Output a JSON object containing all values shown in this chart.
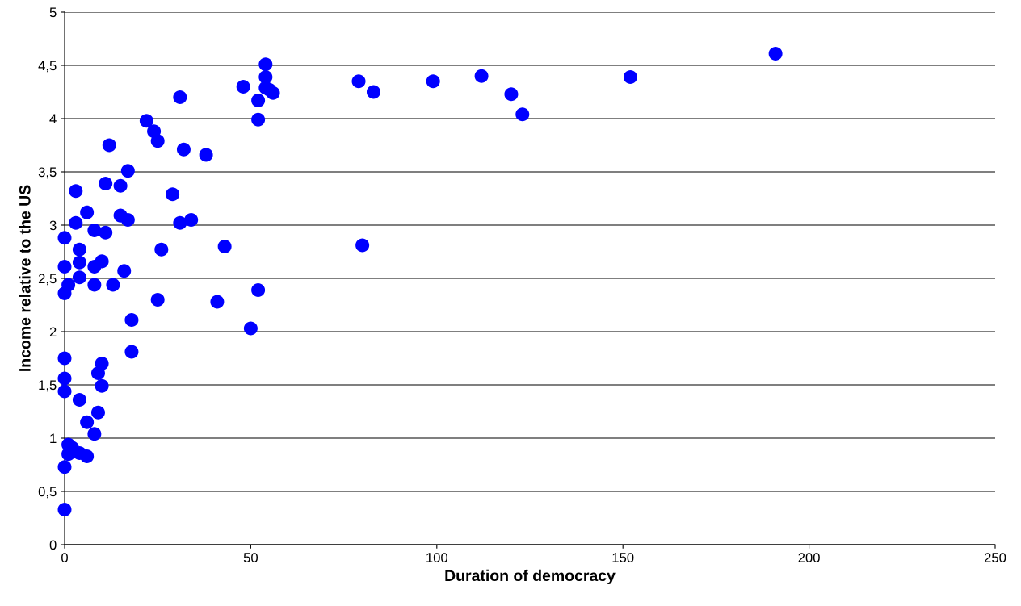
{
  "chart_data": {
    "type": "scatter",
    "xlabel": "Duration of democracy",
    "ylabel": "Income relative to the US",
    "x": [
      0,
      0,
      1,
      1,
      2,
      4,
      6,
      8,
      6,
      9,
      4,
      0,
      0,
      0,
      10,
      9,
      10,
      18,
      18,
      0,
      1,
      0,
      0,
      4,
      4,
      4,
      3,
      3,
      6,
      8,
      8,
      8,
      10,
      11,
      11,
      12,
      13,
      15,
      15,
      16,
      17,
      17,
      22,
      24,
      25,
      25,
      26,
      29,
      31,
      31,
      32,
      34,
      38,
      41,
      43,
      48,
      50,
      52,
      52,
      52,
      54,
      54,
      54,
      55,
      56,
      79,
      80,
      83,
      99,
      112,
      120,
      123,
      152,
      191
    ],
    "series": [
      {
        "color": "#0000ff",
        "values": [
          0.33,
          0.73,
          0.94,
          0.85,
          0.91,
          0.86,
          0.83,
          1.04,
          1.15,
          1.24,
          1.36,
          1.44,
          1.56,
          1.75,
          1.49,
          1.61,
          1.7,
          1.81,
          2.11,
          2.36,
          2.44,
          2.61,
          2.88,
          2.51,
          2.65,
          2.77,
          3.02,
          3.32,
          3.12,
          2.95,
          2.44,
          2.61,
          2.66,
          2.93,
          3.39,
          3.75,
          2.44,
          3.37,
          3.09,
          2.57,
          3.05,
          3.51,
          3.98,
          3.88,
          3.79,
          2.3,
          2.77,
          3.29,
          4.2,
          3.02,
          3.71,
          3.05,
          3.66,
          2.28,
          2.8,
          4.3,
          2.03,
          2.39,
          3.99,
          4.17,
          4.51,
          4.39,
          4.29,
          4.27,
          4.24,
          4.35,
          2.81,
          4.25,
          4.35,
          4.4,
          4.23,
          4.04,
          4.39,
          4.61
        ]
      }
    ],
    "xlim": [
      0,
      250
    ],
    "xticks": [
      0,
      50,
      100,
      150,
      200,
      250
    ],
    "ylim": [
      0,
      5
    ],
    "yticks": [
      0,
      {
        "value": 0.5,
        "label": "0,5"
      },
      1,
      {
        "value": 1.5,
        "label": "1,5"
      },
      2,
      {
        "value": 2.5,
        "label": "2,5"
      },
      3,
      {
        "value": 3.5,
        "label": "3,5"
      },
      4,
      {
        "value": 4.5,
        "label": "4,5"
      },
      5
    ],
    "grid": "y",
    "marker": "circle",
    "legend": false
  }
}
